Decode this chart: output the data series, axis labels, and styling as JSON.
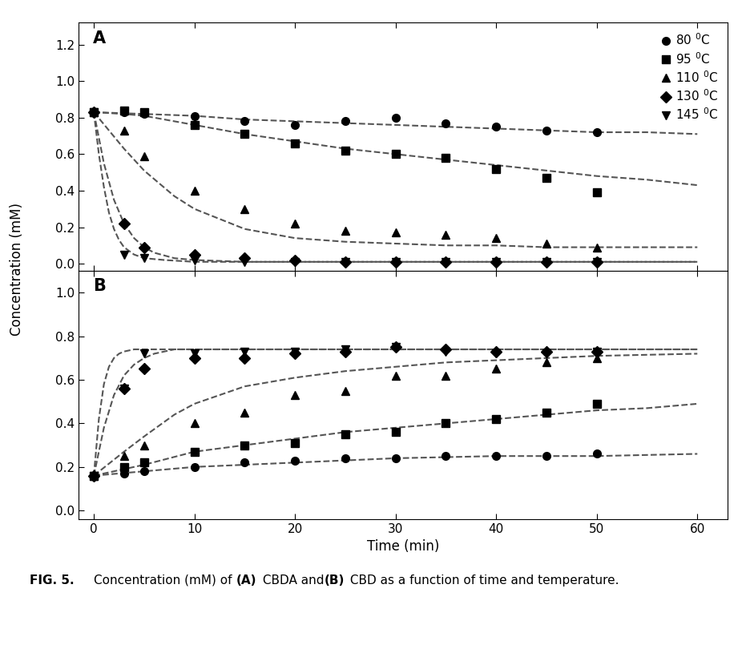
{
  "panel_A_label": "A",
  "panel_B_label": "B",
  "ylabel": "Concentration (mM)",
  "xlabel": "Time (min)",
  "legend_labels": [
    "80 $^{0}$C",
    "95 $^{0}$C",
    "110 $^{0}$C",
    "130 $^{0}$C",
    "145 $^{0}$C"
  ],
  "A_ylim": [
    -0.04,
    1.32
  ],
  "A_yticks": [
    0.0,
    0.2,
    0.4,
    0.6,
    0.8,
    1.0,
    1.2
  ],
  "B_ylim": [
    -0.04,
    1.1
  ],
  "B_yticks": [
    0.0,
    0.2,
    0.4,
    0.6,
    0.8,
    1.0
  ],
  "xlim": [
    -1.5,
    63
  ],
  "xticks": [
    0,
    10,
    20,
    30,
    40,
    50,
    60
  ],
  "A_data": {
    "80C": {
      "x": [
        0,
        3,
        5,
        10,
        15,
        20,
        25,
        30,
        35,
        40,
        45,
        50
      ],
      "y": [
        0.83,
        0.83,
        0.82,
        0.81,
        0.78,
        0.76,
        0.78,
        0.8,
        0.77,
        0.75,
        0.73,
        0.72
      ],
      "fit_x": [
        0,
        5,
        10,
        15,
        20,
        25,
        30,
        35,
        40,
        45,
        50,
        55,
        60
      ],
      "fit_y": [
        0.83,
        0.82,
        0.81,
        0.79,
        0.78,
        0.77,
        0.76,
        0.75,
        0.74,
        0.73,
        0.72,
        0.72,
        0.71
      ]
    },
    "95C": {
      "x": [
        0,
        3,
        5,
        10,
        15,
        20,
        25,
        30,
        35,
        40,
        45,
        50
      ],
      "y": [
        0.83,
        0.84,
        0.83,
        0.76,
        0.71,
        0.66,
        0.62,
        0.6,
        0.58,
        0.52,
        0.47,
        0.39
      ],
      "fit_x": [
        0,
        3,
        5,
        10,
        15,
        20,
        25,
        30,
        35,
        40,
        45,
        50,
        55,
        60
      ],
      "fit_y": [
        0.83,
        0.82,
        0.81,
        0.76,
        0.71,
        0.67,
        0.63,
        0.6,
        0.57,
        0.54,
        0.51,
        0.48,
        0.46,
        0.43
      ]
    },
    "110C": {
      "x": [
        0,
        3,
        5,
        10,
        15,
        20,
        25,
        30,
        35,
        40,
        45,
        50
      ],
      "y": [
        0.83,
        0.73,
        0.59,
        0.4,
        0.3,
        0.22,
        0.18,
        0.17,
        0.16,
        0.14,
        0.11,
        0.09
      ],
      "fit_x": [
        0,
        3,
        5,
        8,
        10,
        15,
        20,
        25,
        30,
        35,
        40,
        45,
        50,
        55,
        60
      ],
      "fit_y": [
        0.83,
        0.63,
        0.51,
        0.37,
        0.3,
        0.19,
        0.14,
        0.12,
        0.11,
        0.1,
        0.1,
        0.09,
        0.09,
        0.09,
        0.09
      ]
    },
    "130C": {
      "x": [
        0,
        3,
        5,
        10,
        15,
        20,
        25,
        30,
        35,
        40,
        45,
        50
      ],
      "y": [
        0.83,
        0.22,
        0.09,
        0.05,
        0.03,
        0.02,
        0.01,
        0.01,
        0.01,
        0.01,
        0.01,
        0.01
      ],
      "fit_x": [
        0,
        1,
        2,
        3,
        4,
        5,
        6,
        8,
        10,
        15,
        20,
        30,
        50,
        60
      ],
      "fit_y": [
        0.83,
        0.55,
        0.35,
        0.22,
        0.14,
        0.09,
        0.06,
        0.03,
        0.02,
        0.01,
        0.01,
        0.01,
        0.01,
        0.01
      ]
    },
    "145C": {
      "x": [
        0,
        3,
        5,
        10,
        15,
        20,
        25,
        30,
        35,
        40,
        45,
        50
      ],
      "y": [
        0.83,
        0.05,
        0.03,
        0.02,
        0.01,
        0.01,
        0.01,
        0.01,
        0.01,
        0.01,
        0.01,
        0.01
      ],
      "fit_x": [
        0,
        0.5,
        1,
        1.5,
        2,
        2.5,
        3,
        4,
        5,
        7,
        10,
        15,
        60
      ],
      "fit_y": [
        0.83,
        0.6,
        0.42,
        0.28,
        0.19,
        0.13,
        0.09,
        0.05,
        0.03,
        0.02,
        0.01,
        0.01,
        0.01
      ]
    }
  },
  "B_data": {
    "80C": {
      "x": [
        0,
        3,
        5,
        10,
        15,
        20,
        25,
        30,
        35,
        40,
        45,
        50
      ],
      "y": [
        0.16,
        0.17,
        0.18,
        0.2,
        0.22,
        0.23,
        0.24,
        0.24,
        0.25,
        0.25,
        0.25,
        0.26
      ],
      "fit_x": [
        0,
        5,
        10,
        15,
        20,
        25,
        30,
        40,
        50,
        60
      ],
      "fit_y": [
        0.16,
        0.18,
        0.2,
        0.21,
        0.22,
        0.23,
        0.24,
        0.25,
        0.25,
        0.26
      ]
    },
    "95C": {
      "x": [
        0,
        3,
        5,
        10,
        15,
        20,
        25,
        30,
        35,
        40,
        45,
        50
      ],
      "y": [
        0.16,
        0.2,
        0.22,
        0.27,
        0.3,
        0.31,
        0.35,
        0.36,
        0.4,
        0.42,
        0.45,
        0.49
      ],
      "fit_x": [
        0,
        3,
        5,
        10,
        15,
        20,
        25,
        30,
        35,
        40,
        45,
        50,
        55,
        60
      ],
      "fit_y": [
        0.16,
        0.19,
        0.21,
        0.27,
        0.3,
        0.33,
        0.36,
        0.38,
        0.4,
        0.42,
        0.44,
        0.46,
        0.47,
        0.49
      ]
    },
    "110C": {
      "x": [
        0,
        3,
        5,
        10,
        15,
        20,
        25,
        30,
        35,
        40,
        45,
        50
      ],
      "y": [
        0.16,
        0.25,
        0.3,
        0.4,
        0.45,
        0.53,
        0.55,
        0.62,
        0.62,
        0.65,
        0.68,
        0.7
      ],
      "fit_x": [
        0,
        3,
        5,
        8,
        10,
        15,
        20,
        25,
        30,
        35,
        40,
        50,
        60
      ],
      "fit_y": [
        0.16,
        0.27,
        0.34,
        0.44,
        0.49,
        0.57,
        0.61,
        0.64,
        0.66,
        0.68,
        0.69,
        0.71,
        0.72
      ]
    },
    "130C": {
      "x": [
        0,
        3,
        5,
        10,
        15,
        20,
        25,
        30,
        35,
        40,
        45,
        50
      ],
      "y": [
        0.16,
        0.56,
        0.65,
        0.7,
        0.7,
        0.72,
        0.73,
        0.75,
        0.74,
        0.73,
        0.73,
        0.73
      ],
      "fit_x": [
        0,
        1,
        2,
        3,
        4,
        5,
        6,
        7,
        8,
        10,
        15,
        20,
        30,
        60
      ],
      "fit_y": [
        0.16,
        0.38,
        0.53,
        0.62,
        0.67,
        0.7,
        0.72,
        0.73,
        0.74,
        0.74,
        0.74,
        0.74,
        0.74,
        0.74
      ]
    },
    "145C": {
      "x": [
        0,
        3,
        5,
        10,
        15,
        20,
        25,
        30,
        35,
        40,
        45,
        50
      ],
      "y": [
        0.16,
        0.56,
        0.72,
        0.72,
        0.73,
        0.73,
        0.74,
        0.75,
        0.73,
        0.72,
        0.72,
        0.73
      ],
      "fit_x": [
        0,
        0.5,
        1,
        1.5,
        2,
        2.5,
        3,
        4,
        5,
        7,
        10,
        15,
        60
      ],
      "fit_y": [
        0.16,
        0.42,
        0.58,
        0.66,
        0.7,
        0.72,
        0.73,
        0.74,
        0.74,
        0.74,
        0.74,
        0.74,
        0.74
      ]
    }
  },
  "marker_size": 7,
  "fit_linewidth": 1.5,
  "tick_font_size": 11,
  "label_font_size": 12,
  "legend_fontsize": 11
}
